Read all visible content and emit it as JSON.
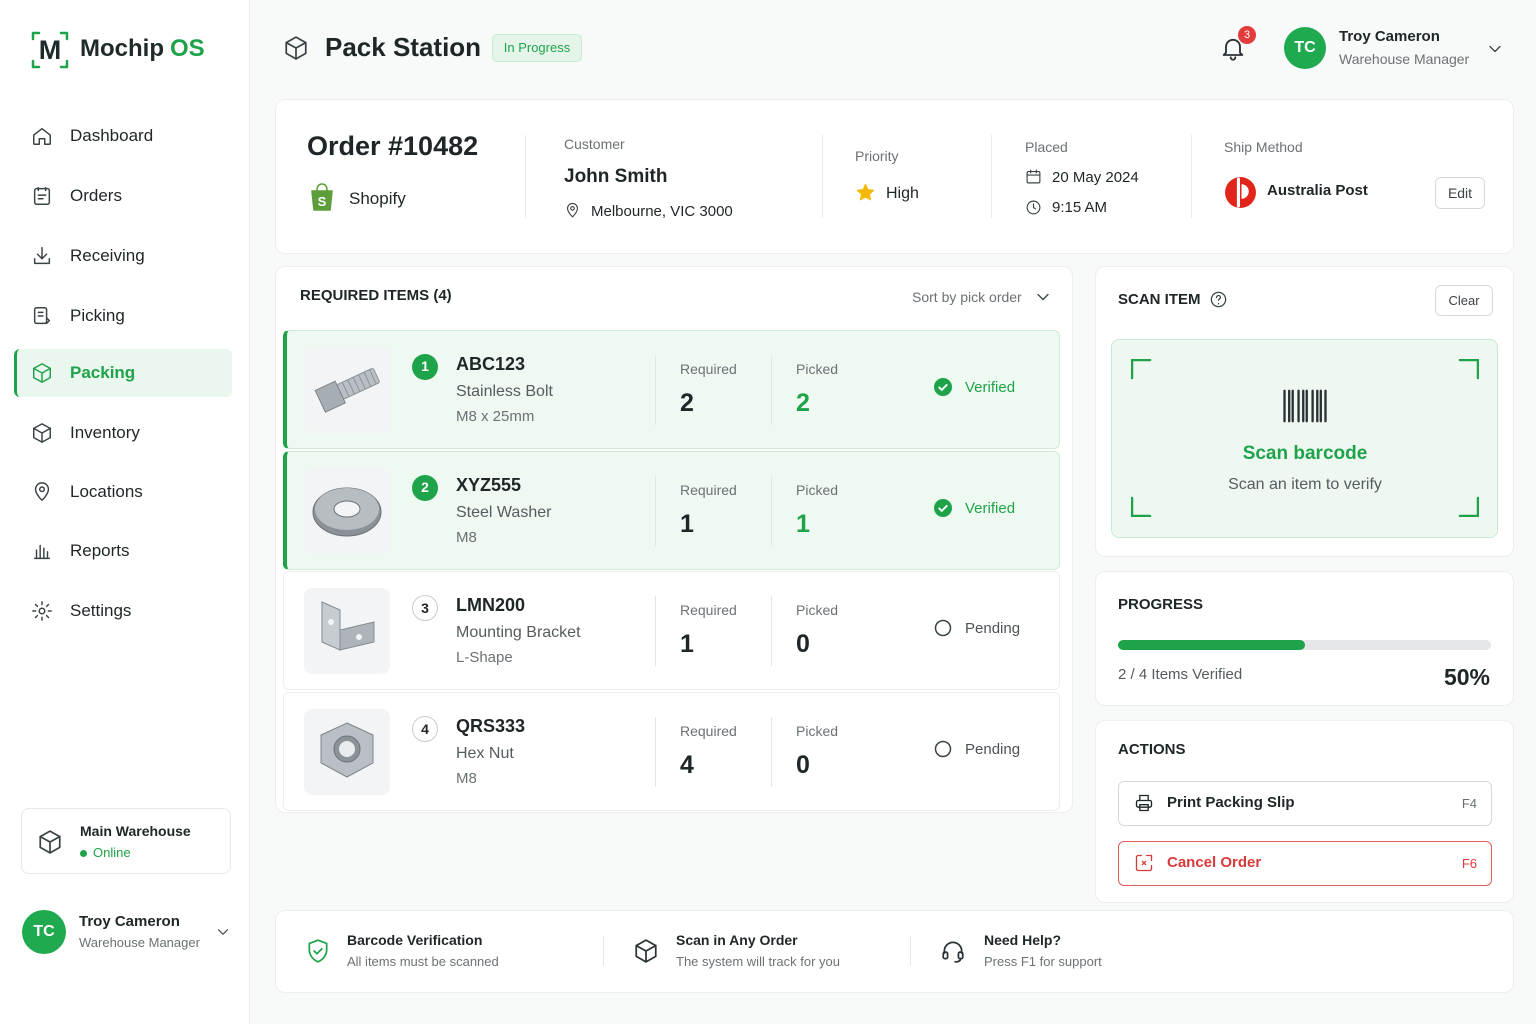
{
  "sidebar": {
    "logo_mark": "M",
    "logo_name": "Mochip",
    "logo_suffix": "OS",
    "nav": [
      {
        "label": "Dashboard"
      },
      {
        "label": "Orders"
      },
      {
        "label": "Receiving"
      },
      {
        "label": "Picking"
      },
      {
        "label": "Packing",
        "active": true
      },
      {
        "label": "Inventory"
      },
      {
        "label": "Locations"
      },
      {
        "label": "Reports"
      },
      {
        "label": "Settings"
      }
    ],
    "warehouse": {
      "name": "Main Warehouse",
      "status": "Online"
    },
    "user": {
      "initials": "TC",
      "name": "Troy Cameron",
      "role": "Warehouse Manager"
    }
  },
  "header": {
    "title": "Pack Station",
    "status": "In Progress",
    "notifications": 3,
    "user": {
      "initials": "TC",
      "name": "Troy Cameron",
      "role": "Warehouse Manager"
    }
  },
  "order": {
    "number": "Order #10482",
    "channel": "Shopify",
    "customer": {
      "label": "Customer",
      "name": "John Smith",
      "location": "Melbourne, VIC 3000"
    },
    "priority": {
      "label": "Priority",
      "value": "High"
    },
    "placed": {
      "label": "Placed",
      "date": "20 May 2024",
      "time": "9:15 AM"
    },
    "ship": {
      "label": "Ship Method",
      "value": "Australia Post",
      "edit": "Edit"
    }
  },
  "items": {
    "title": "REQUIRED ITEMS (4)",
    "sort": "Sort by pick order",
    "required_label": "Required",
    "picked_label": "Picked",
    "rows": [
      {
        "index": 1,
        "sku": "ABC123",
        "name": "Stainless Bolt",
        "spec": "M8 x 25mm",
        "required": 2,
        "picked": 2,
        "status": "Verified"
      },
      {
        "index": 2,
        "sku": "XYZ555",
        "name": "Steel Washer",
        "spec": "M8",
        "required": 1,
        "picked": 1,
        "status": "Verified"
      },
      {
        "index": 3,
        "sku": "LMN200",
        "name": "Mounting Bracket",
        "spec": "L-Shape",
        "required": 1,
        "picked": 0,
        "status": "Pending"
      },
      {
        "index": 4,
        "sku": "QRS333",
        "name": "Hex Nut",
        "spec": "M8",
        "required": 4,
        "picked": 0,
        "status": "Pending"
      }
    ]
  },
  "scan": {
    "title": "SCAN ITEM",
    "clear": "Clear",
    "prompt": "Scan barcode",
    "hint": "Scan an item to verify"
  },
  "progress": {
    "title": "PROGRESS",
    "summary": "2 / 4 Items Verified",
    "percent": {
      "value": 50,
      "label": "50%"
    }
  },
  "actions": {
    "title": "ACTIONS",
    "buttons": [
      {
        "label": "Print Packing Slip",
        "key": "F4"
      },
      {
        "label": "Cancel Order",
        "key": "F6"
      }
    ]
  },
  "footer": [
    {
      "title": "Barcode Verification",
      "text": "All items must be scanned"
    },
    {
      "title": "Scan in Any Order",
      "text": "The system will track for you"
    },
    {
      "title": "Need Help?",
      "text": "Press F1 for support"
    }
  ]
}
